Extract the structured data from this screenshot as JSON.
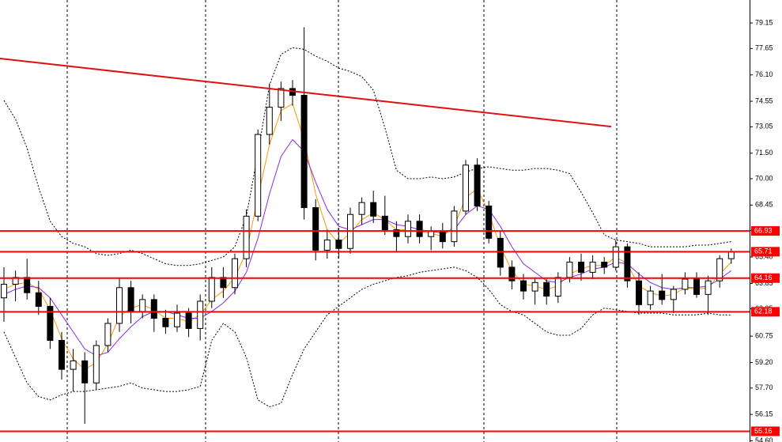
{
  "chart_data": {
    "type": "candlestick",
    "ylim": [
      54.53,
      80.5
    ],
    "yticks": [
      79.15,
      77.65,
      {
        "value": 76.1,
        "label": "76.10"
      },
      74.55,
      73.05,
      {
        "value": 71.5,
        "label": "71.50"
      },
      {
        "value": 70,
        "label": "70.00"
      },
      68.45,
      66.95,
      {
        "value": 65.4,
        "label": "65.40"
      },
      63.85,
      62.35,
      60.75,
      {
        "value": 59.2,
        "label": "59.20"
      },
      {
        "value": 57.7,
        "label": "57.70"
      },
      56.15,
      {
        "value": 54.6,
        "label": "54.60"
      }
    ],
    "up_color": "#ffffff",
    "down_color": "#000000",
    "open": [
      63.0,
      63.8,
      64.2,
      63.3,
      62.5,
      60.5,
      58.8,
      59.3,
      58.0,
      60.2,
      61.5,
      63.6,
      62.2,
      62.9,
      61.8,
      61.3,
      62.1,
      61.2,
      62.8,
      64.2,
      63.6,
      65.3,
      67.8,
      72.6,
      74.2,
      75.3,
      74.9,
      68.3,
      65.8,
      66.4,
      65.9,
      67.9,
      68.6,
      67.8,
      67.0,
      66.6,
      67.5,
      66.6,
      66.9,
      66.3,
      68.1,
      70.8,
      68.4,
      66.5,
      64.8,
      64.0,
      63.4,
      63.9,
      63.1,
      64.2,
      65.1,
      64.5,
      65.1,
      64.8,
      66.0,
      64.0,
      62.6,
      63.4,
      62.9,
      63.5,
      64.1,
      63.2,
      64.0,
      65.3
    ],
    "high": [
      64.8,
      64.6,
      65.3,
      64.0,
      63.0,
      61.0,
      60.0,
      59.8,
      60.5,
      61.8,
      64.2,
      64.0,
      63.2,
      63.2,
      62.3,
      62.6,
      62.4,
      63.2,
      64.8,
      64.8,
      65.6,
      68.2,
      72.9,
      75.6,
      75.7,
      75.8,
      78.9,
      68.8,
      67.0,
      67.1,
      68.3,
      68.9,
      69.3,
      69.0,
      67.5,
      67.9,
      67.9,
      67.2,
      67.4,
      68.4,
      71.1,
      71.2,
      68.7,
      66.9,
      65.2,
      64.4,
      64.2,
      64.1,
      64.5,
      65.4,
      65.6,
      65.5,
      65.4,
      66.4,
      66.2,
      64.5,
      63.7,
      64.4,
      63.7,
      64.5,
      64.5,
      64.3,
      65.5,
      65.9
    ],
    "low": [
      61.6,
      62.8,
      62.9,
      62.0,
      60.0,
      58.2,
      57.5,
      55.6,
      57.6,
      59.8,
      61.0,
      61.5,
      61.8,
      61.0,
      60.9,
      61.0,
      60.7,
      60.5,
      62.4,
      63.0,
      63.2,
      64.8,
      67.5,
      72.0,
      73.4,
      74.3,
      67.6,
      65.2,
      65.3,
      65.3,
      65.6,
      67.3,
      67.4,
      66.7,
      65.7,
      66.2,
      66.2,
      65.8,
      65.9,
      66.0,
      67.9,
      68.1,
      66.2,
      64.3,
      63.5,
      62.9,
      62.6,
      62.6,
      62.7,
      63.9,
      64.0,
      64.1,
      64.4,
      64.6,
      63.6,
      62.0,
      62.3,
      62.6,
      62.1,
      63.2,
      63.0,
      62.0,
      63.6,
      65.0
    ],
    "close": [
      63.8,
      64.2,
      63.3,
      62.5,
      60.5,
      58.8,
      59.3,
      58.0,
      60.2,
      61.5,
      63.6,
      62.2,
      62.9,
      61.8,
      61.3,
      62.1,
      61.2,
      62.8,
      64.2,
      63.6,
      65.3,
      67.8,
      72.6,
      74.2,
      75.3,
      74.9,
      68.3,
      65.8,
      66.4,
      65.9,
      67.9,
      68.6,
      67.8,
      67.0,
      66.6,
      67.5,
      66.6,
      66.9,
      66.3,
      68.1,
      70.8,
      68.4,
      66.5,
      64.8,
      64.0,
      63.4,
      63.9,
      63.1,
      64.2,
      65.1,
      64.5,
      65.1,
      64.8,
      66.0,
      64.0,
      62.6,
      63.4,
      62.9,
      63.5,
      64.1,
      63.2,
      64.0,
      65.3,
      65.7
    ],
    "overlays": [
      {
        "color": "#ff9900",
        "style": "solid",
        "values": [
          63.5,
          63.8,
          63.9,
          63.5,
          62.3,
          60.6,
          59.4,
          58.8,
          59.2,
          60.3,
          61.9,
          62.4,
          62.6,
          62.3,
          61.8,
          61.8,
          61.6,
          62.0,
          62.9,
          63.4,
          64.2,
          65.7,
          68.9,
          72.0,
          74.0,
          74.4,
          72.3,
          69.1,
          67.0,
          66.2,
          66.8,
          67.6,
          68.0,
          67.6,
          67.0,
          67.0,
          66.9,
          66.8,
          66.6,
          67.2,
          68.9,
          69.4,
          68.0,
          66.0,
          64.6,
          63.8,
          63.7,
          63.5,
          63.7,
          64.4,
          64.7,
          64.9,
          64.9,
          65.4,
          65.0,
          63.7,
          63.3,
          63.1,
          63.2,
          63.6,
          63.5,
          63.6,
          64.4,
          65.1
        ]
      },
      {
        "color": "#8a2be2",
        "style": "solid",
        "values": [
          63.2,
          63.5,
          63.7,
          63.6,
          63.0,
          62.0,
          61.0,
          60.0,
          59.6,
          59.8,
          60.6,
          61.3,
          61.9,
          62.2,
          62.2,
          62.0,
          61.8,
          61.8,
          62.2,
          62.7,
          63.4,
          64.5,
          66.5,
          69.1,
          71.3,
          72.3,
          71.6,
          69.8,
          68.2,
          67.2,
          67.0,
          67.3,
          67.6,
          67.6,
          67.3,
          67.2,
          67.0,
          66.9,
          66.8,
          67.0,
          67.9,
          68.4,
          68.2,
          67.2,
          66.0,
          65.0,
          64.5,
          64.0,
          63.9,
          64.2,
          64.4,
          64.7,
          64.8,
          65.1,
          65.0,
          64.4,
          63.9,
          63.6,
          63.5,
          63.6,
          63.6,
          63.7,
          64.1,
          64.6
        ]
      },
      {
        "color": "#000000",
        "style": "dotted",
        "values": [
          74.6,
          73.5,
          71.8,
          69.5,
          67.5,
          66.6,
          66.2,
          66.0,
          65.6,
          65.5,
          65.6,
          65.8,
          65.6,
          65.3,
          65.0,
          64.9,
          64.9,
          65.0,
          65.2,
          65.4,
          66.0,
          67.8,
          71.5,
          75.5,
          77.3,
          77.7,
          77.6,
          77.2,
          76.9,
          76.5,
          76.3,
          76.0,
          75.2,
          73.0,
          70.5,
          70.0,
          70.0,
          70.1,
          70.0,
          70.1,
          70.4,
          70.6,
          70.7,
          70.6,
          70.5,
          70.5,
          70.6,
          70.6,
          70.5,
          70.3,
          69.2,
          68.0,
          66.7,
          66.4,
          66.3,
          66.2,
          66.0,
          66.0,
          66.0,
          66.0,
          66.1,
          66.1,
          66.2,
          66.3
        ]
      },
      {
        "color": "#000000",
        "style": "dotted",
        "values": [
          61.0,
          59.5,
          58.0,
          57.2,
          57.0,
          57.3,
          57.5,
          57.5,
          57.6,
          57.7,
          57.8,
          58.0,
          57.7,
          57.6,
          57.5,
          57.5,
          57.6,
          57.8,
          60.5,
          61.5,
          61.0,
          59.5,
          57.0,
          56.6,
          56.8,
          58.5,
          60.0,
          61.0,
          62.0,
          62.5,
          63.0,
          63.5,
          63.8,
          64.0,
          64.2,
          64.3,
          64.5,
          64.6,
          64.7,
          64.8,
          64.6,
          64.2,
          63.5,
          62.6,
          62.2,
          62.0,
          61.5,
          61.0,
          60.8,
          60.8,
          61.2,
          62.0,
          62.4,
          62.3,
          62.2,
          62.1,
          62.1,
          62.1,
          62.0,
          62.0,
          62.0,
          62.1,
          62.0,
          62.0
        ]
      }
    ],
    "levels": [
      66.93,
      65.71,
      64.16,
      62.18,
      55.16
    ],
    "level_color": "#ff0000",
    "trendline": {
      "color": "#e01010",
      "x": [
        -0.34,
        52.6
      ],
      "y": [
        77.06,
        73.06
      ]
    }
  }
}
